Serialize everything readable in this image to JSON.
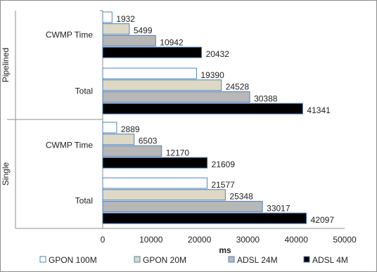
{
  "chart_data": {
    "type": "bar",
    "orientation": "horizontal",
    "title": "",
    "xlabel": "ms",
    "ylabel": "",
    "xlim": [
      0,
      50000
    ],
    "x_ticks": [
      0,
      10000,
      20000,
      30000,
      40000,
      50000
    ],
    "x_tick_labels": [
      "0",
      "10000",
      "20000",
      "30000",
      "40000",
      "50000"
    ],
    "grid": false,
    "legend_position": "bottom",
    "groups": [
      {
        "name": "Pipelined",
        "categories": [
          {
            "name": "CWMP Time",
            "values": [
              1932,
              5499,
              10942,
              20432
            ]
          },
          {
            "name": "Total",
            "values": [
              19390,
              24528,
              30388,
              41341
            ]
          }
        ]
      },
      {
        "name": "Single",
        "categories": [
          {
            "name": "CWMP Time",
            "values": [
              2889,
              6503,
              12170,
              21609
            ]
          },
          {
            "name": "Total",
            "values": [
              21577,
              25348,
              33017,
              42097
            ]
          }
        ]
      }
    ],
    "series": [
      {
        "name": "GPON 100M",
        "fill": "#ffffff",
        "stroke": "#4f81bd"
      },
      {
        "name": "GPON 20M",
        "fill": "#ddd9c4",
        "stroke": "#4f81bd"
      },
      {
        "name": "ADSL 24M",
        "fill": "#b7b7b7",
        "stroke": "#4f81bd"
      },
      {
        "name": "ADSL 4M",
        "fill": "#000000",
        "stroke": "#4f81bd"
      }
    ]
  }
}
